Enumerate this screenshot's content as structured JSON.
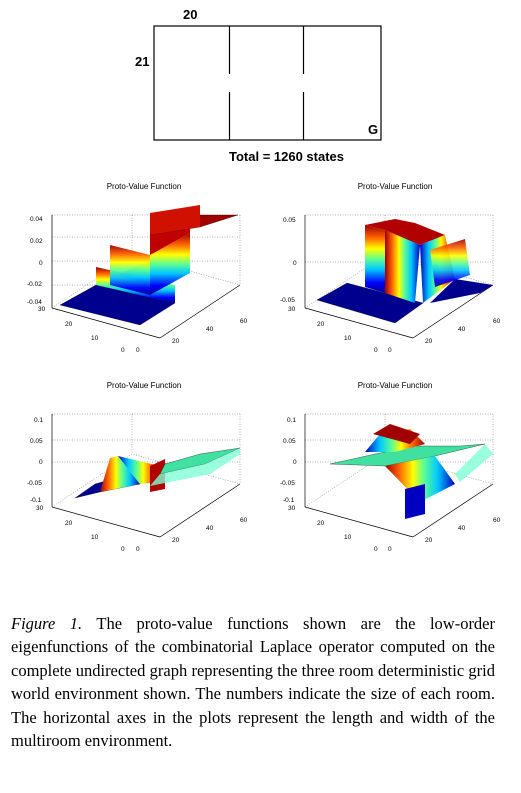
{
  "gridworld": {
    "width_label": "20",
    "height_label": "21",
    "goal_label": "G",
    "total_label": "Total = 1260 states"
  },
  "plots": [
    {
      "title": "Proto-Value Function",
      "z_ticks": [
        "0.04",
        "0.02",
        "0",
        "-0.02",
        "-0.04"
      ],
      "y_ticks": [
        "30",
        "20",
        "10",
        "0"
      ],
      "x_ticks": [
        "0",
        "20",
        "40",
        "60"
      ]
    },
    {
      "title": "Proto-Value Function",
      "z_ticks": [
        "0.05",
        "0",
        "-0.05"
      ],
      "y_ticks": [
        "30",
        "20",
        "10",
        "0"
      ],
      "x_ticks": [
        "0",
        "20",
        "40",
        "60"
      ]
    },
    {
      "title": "Proto-Value Function",
      "z_ticks": [
        "0.1",
        "0.05",
        "0",
        "-0.05",
        "-0.1"
      ],
      "y_ticks": [
        "30",
        "20",
        "10",
        "0"
      ],
      "x_ticks": [
        "0",
        "20",
        "40",
        "60"
      ]
    },
    {
      "title": "Proto-Value Function",
      "z_ticks": [
        "0.1",
        "0.05",
        "0",
        "-0.05",
        "-0.1"
      ],
      "y_ticks": [
        "30",
        "20",
        "10",
        "0"
      ],
      "x_ticks": [
        "0",
        "20",
        "40",
        "60"
      ]
    }
  ],
  "caption": {
    "figure_label": "Figure 1.",
    "text": " The proto-value functions shown are the low-order eigenfunctions of the combinatorial Laplace operator computed on the complete undirected graph representing the three room deterministic grid world environment shown. The numbers indicate the size of each room. The horizontal axes in the plots represent the length and width of the multiroom environment."
  }
}
